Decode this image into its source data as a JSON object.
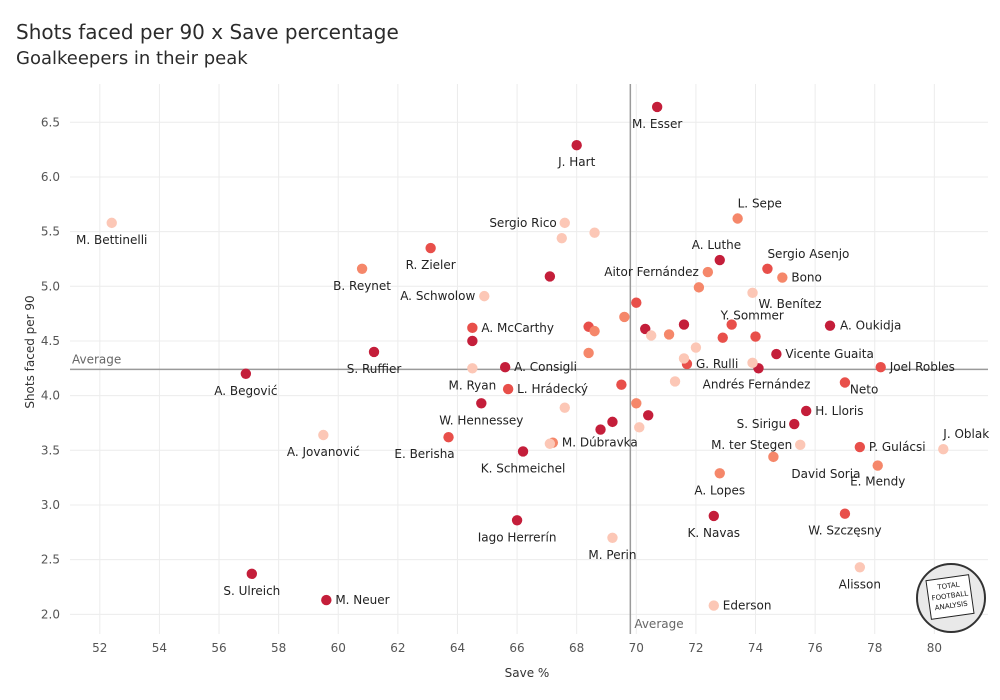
{
  "header": {
    "title": "Shots faced per 90 x Save percentage",
    "subtitle": "Goalkeepers in their peak"
  },
  "logo": {
    "text": [
      "TOTAL",
      "FOOTBALL",
      "ANALYSIS"
    ]
  },
  "chart_data": {
    "type": "scatter",
    "title": "Shots faced per 90 x Save percentage",
    "subtitle": "Goalkeepers in their peak",
    "xlabel": "Save %",
    "ylabel": "Shots faced per 90",
    "xlim": [
      51,
      81.8
    ],
    "ylim": [
      1.82,
      6.85
    ],
    "x_ticks": [
      52,
      54,
      56,
      58,
      60,
      62,
      64,
      66,
      68,
      70,
      72,
      74,
      76,
      78,
      80
    ],
    "y_ticks": [
      2.0,
      2.5,
      3.0,
      3.5,
      4.0,
      4.5,
      5.0,
      5.5,
      6.0,
      6.5
    ],
    "grid": true,
    "reference_lines": {
      "x_average": {
        "value": 69.8,
        "label": "Average"
      },
      "y_average": {
        "value": 4.24,
        "label": "Average"
      }
    },
    "color_scale": [
      "#fcc7b6",
      "#f5876a",
      "#e84f4a",
      "#c41e3a"
    ],
    "points": [
      {
        "name": "M. Esser",
        "x": 70.7,
        "y": 6.64,
        "c": 3
      },
      {
        "name": "J. Hart",
        "x": 68.0,
        "y": 6.29,
        "c": 3
      },
      {
        "name": "M. Bettinelli",
        "x": 52.4,
        "y": 5.58,
        "c": 0
      },
      {
        "name": "Sergio Rico",
        "x": 67.6,
        "y": 5.58,
        "c": 0
      },
      {
        "name": "L. Sepe",
        "x": 73.4,
        "y": 5.62,
        "c": 1
      },
      {
        "name": "R. Zieler",
        "x": 63.1,
        "y": 5.35,
        "c": 2
      },
      {
        "name": "A. Luthe",
        "x": 72.8,
        "y": 5.24,
        "c": 3
      },
      {
        "name": "Sergio Asenjo",
        "x": 74.4,
        "y": 5.16,
        "c": 2
      },
      {
        "name": "B. Reynet",
        "x": 60.8,
        "y": 5.16,
        "c": 1
      },
      {
        "name": "Aitor Fernández",
        "x": 72.4,
        "y": 5.13,
        "c": 1
      },
      {
        "name": "Bono",
        "x": 74.9,
        "y": 5.08,
        "c": 1
      },
      {
        "name": "A. Schwolow",
        "x": 64.9,
        "y": 4.91,
        "c": 0
      },
      {
        "name": "W. Benítez",
        "x": 73.9,
        "y": 4.94,
        "c": 0
      },
      {
        "name": "A. McCarthy",
        "x": 64.5,
        "y": 4.62,
        "c": 2
      },
      {
        "name": "Y. Sommer",
        "x": 73.2,
        "y": 4.65,
        "c": 2
      },
      {
        "name": "A. Oukidja",
        "x": 76.5,
        "y": 4.64,
        "c": 3
      },
      {
        "name": "S. Ruffier",
        "x": 61.2,
        "y": 4.4,
        "c": 3
      },
      {
        "name": "Vicente Guaita",
        "x": 74.7,
        "y": 4.38,
        "c": 3
      },
      {
        "name": "A. Consigli",
        "x": 65.6,
        "y": 4.26,
        "c": 3
      },
      {
        "name": "G. Rulli",
        "x": 71.7,
        "y": 4.29,
        "c": 2
      },
      {
        "name": "Joel Robles",
        "x": 78.2,
        "y": 4.26,
        "c": 2
      },
      {
        "name": "A. Begović",
        "x": 56.9,
        "y": 4.2,
        "c": 3
      },
      {
        "name": "M. Ryan",
        "x": 64.5,
        "y": 4.25,
        "c": 0
      },
      {
        "name": "Andrés Fernández",
        "x": 74.1,
        "y": 4.25,
        "c": 3
      },
      {
        "name": "L. Hrádecký",
        "x": 65.7,
        "y": 4.06,
        "c": 2
      },
      {
        "name": "Neto",
        "x": 77.0,
        "y": 4.12,
        "c": 2
      },
      {
        "name": "W. Hennessey",
        "x": 64.8,
        "y": 3.93,
        "c": 3
      },
      {
        "name": "H. Lloris",
        "x": 75.7,
        "y": 3.86,
        "c": 3
      },
      {
        "name": "S. Sirigu",
        "x": 75.3,
        "y": 3.74,
        "c": 3
      },
      {
        "name": "A. Jovanović",
        "x": 59.5,
        "y": 3.64,
        "c": 0
      },
      {
        "name": "E. Berisha",
        "x": 63.7,
        "y": 3.62,
        "c": 2
      },
      {
        "name": "M. Dúbravka",
        "x": 67.2,
        "y": 3.57,
        "c": 1
      },
      {
        "name": "J. Oblak",
        "x": 80.3,
        "y": 3.51,
        "c": 0
      },
      {
        "name": "P. Gulácsi",
        "x": 77.5,
        "y": 3.53,
        "c": 2
      },
      {
        "name": "M. ter Stegen",
        "x": 75.5,
        "y": 3.55,
        "c": 0
      },
      {
        "name": "K. Schmeichel",
        "x": 66.2,
        "y": 3.49,
        "c": 3
      },
      {
        "name": "David Soria",
        "x": 74.6,
        "y": 3.44,
        "c": 1
      },
      {
        "name": "E. Mendy",
        "x": 78.1,
        "y": 3.36,
        "c": 1
      },
      {
        "name": "A. Lopes",
        "x": 72.8,
        "y": 3.29,
        "c": 1
      },
      {
        "name": "W. Szczęsny",
        "x": 77.0,
        "y": 2.92,
        "c": 2
      },
      {
        "name": "K. Navas",
        "x": 72.6,
        "y": 2.9,
        "c": 3
      },
      {
        "name": "Iago Herrerín",
        "x": 66.0,
        "y": 2.86,
        "c": 3
      },
      {
        "name": "M. Perin",
        "x": 69.2,
        "y": 2.7,
        "c": 0
      },
      {
        "name": "Alisson",
        "x": 77.5,
        "y": 2.43,
        "c": 0
      },
      {
        "name": "S. Ulreich",
        "x": 57.1,
        "y": 2.37,
        "c": 3
      },
      {
        "name": "M. Neuer",
        "x": 59.6,
        "y": 2.13,
        "c": 3
      },
      {
        "name": "Ederson",
        "x": 72.6,
        "y": 2.08,
        "c": 0
      },
      {
        "name": "",
        "x": 67.1,
        "y": 5.09,
        "c": 3
      },
      {
        "name": "",
        "x": 67.5,
        "y": 5.44,
        "c": 0
      },
      {
        "name": "",
        "x": 68.6,
        "y": 5.49,
        "c": 0
      },
      {
        "name": "",
        "x": 64.5,
        "y": 4.5,
        "c": 3
      },
      {
        "name": "",
        "x": 68.4,
        "y": 4.63,
        "c": 2
      },
      {
        "name": "",
        "x": 68.6,
        "y": 4.59,
        "c": 1
      },
      {
        "name": "",
        "x": 69.6,
        "y": 4.72,
        "c": 1
      },
      {
        "name": "",
        "x": 70.0,
        "y": 4.85,
        "c": 2
      },
      {
        "name": "",
        "x": 70.3,
        "y": 4.61,
        "c": 3
      },
      {
        "name": "",
        "x": 70.5,
        "y": 4.55,
        "c": 0
      },
      {
        "name": "",
        "x": 71.1,
        "y": 4.56,
        "c": 1
      },
      {
        "name": "",
        "x": 71.6,
        "y": 4.65,
        "c": 3
      },
      {
        "name": "",
        "x": 72.1,
        "y": 4.99,
        "c": 1
      },
      {
        "name": "",
        "x": 72.0,
        "y": 4.44,
        "c": 0
      },
      {
        "name": "",
        "x": 72.9,
        "y": 4.53,
        "c": 2
      },
      {
        "name": "",
        "x": 74.0,
        "y": 4.54,
        "c": 2
      },
      {
        "name": "",
        "x": 71.6,
        "y": 4.34,
        "c": 0
      },
      {
        "name": "",
        "x": 73.9,
        "y": 4.3,
        "c": 0
      },
      {
        "name": "",
        "x": 68.4,
        "y": 4.39,
        "c": 1
      },
      {
        "name": "",
        "x": 69.5,
        "y": 4.1,
        "c": 2
      },
      {
        "name": "",
        "x": 71.3,
        "y": 4.13,
        "c": 0
      },
      {
        "name": "",
        "x": 70.0,
        "y": 3.93,
        "c": 1
      },
      {
        "name": "",
        "x": 67.6,
        "y": 3.89,
        "c": 0
      },
      {
        "name": "",
        "x": 70.4,
        "y": 3.82,
        "c": 3
      },
      {
        "name": "",
        "x": 69.2,
        "y": 3.76,
        "c": 3
      },
      {
        "name": "",
        "x": 70.1,
        "y": 3.71,
        "c": 0
      },
      {
        "name": "",
        "x": 68.8,
        "y": 3.69,
        "c": 3
      },
      {
        "name": "",
        "x": 67.1,
        "y": 3.56,
        "c": 0
      }
    ]
  }
}
